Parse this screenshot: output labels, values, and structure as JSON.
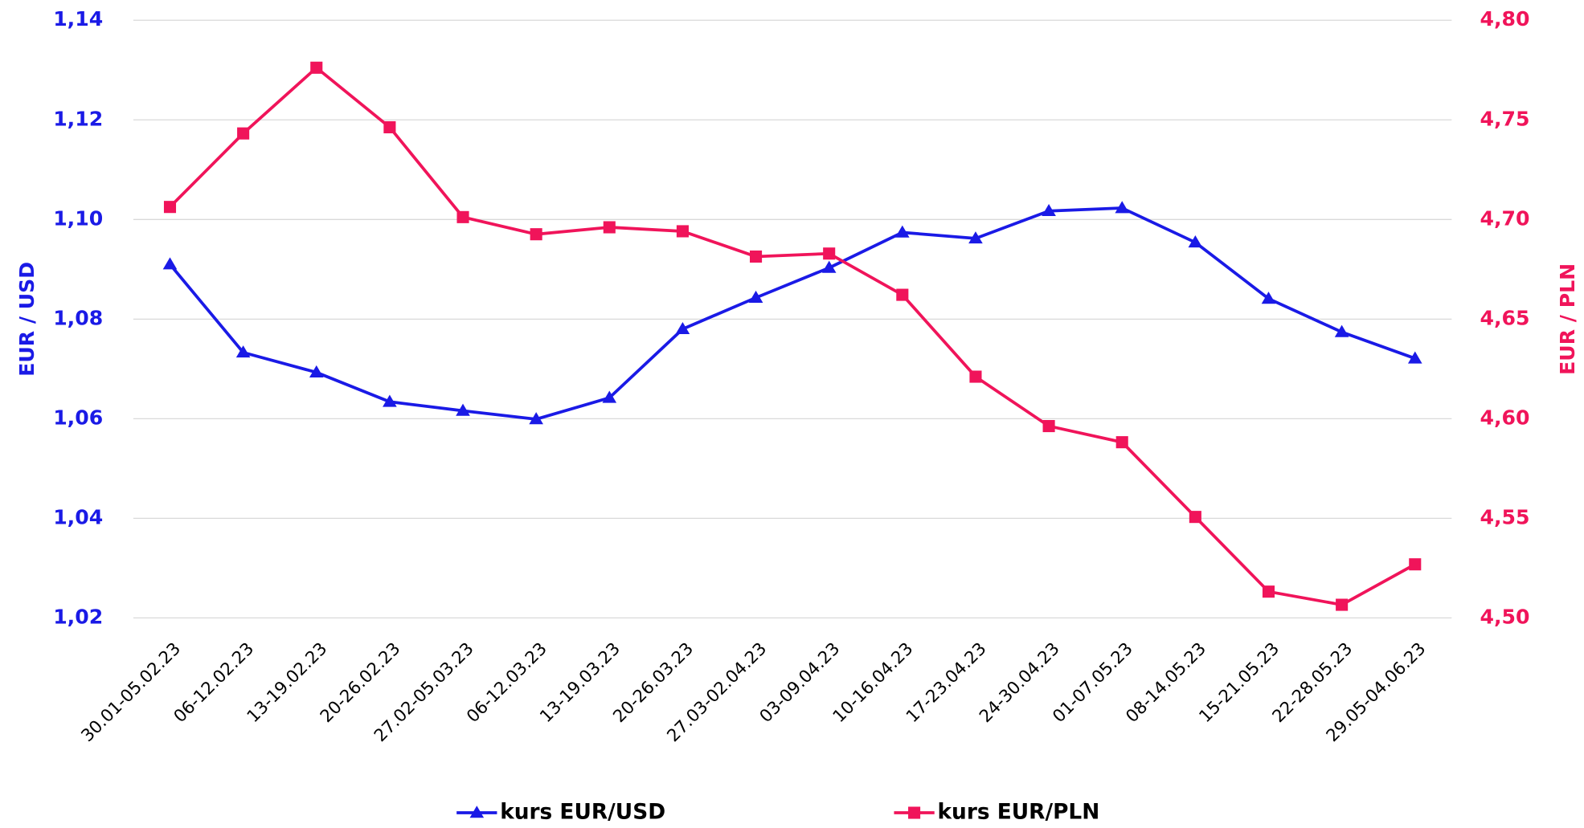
{
  "chart_data": {
    "type": "line",
    "categories": [
      "30.01-05.02.23",
      "06-12.02.23",
      "13-19.02.23",
      "20-26.02.23",
      "27.02-05.03.23",
      "06-12.03.23",
      "13-19.03.23",
      "20-26.03.23",
      "27.03-02.04.23",
      "03-09.04.23",
      "10-16.04.23",
      "17-23.04.23",
      "24-30.04.23",
      "01-07.05.23",
      "08-14.05.23",
      "15-21.05.23",
      "22-28.05.23",
      "29.05-04.06.23"
    ],
    "series": [
      {
        "name": "kurs EUR/USD",
        "color": "#1a1ae6",
        "marker": "triangle",
        "values": [
          1.091,
          1.0733,
          1.0693,
          1.0634,
          1.0616,
          1.0599,
          1.0642,
          1.078,
          1.0843,
          1.0903,
          1.0974,
          1.0962,
          1.1017,
          1.1023,
          1.0954,
          1.0841,
          1.0774,
          1.0721
        ]
      },
      {
        "name": "kurs EUR/PLN",
        "color": "#f0145a",
        "marker": "square",
        "axis": "y2",
        "values": [
          4.7063,
          4.7432,
          4.7762,
          4.7463,
          4.7012,
          4.6926,
          4.6961,
          4.6941,
          4.6814,
          4.6829,
          4.6622,
          4.6211,
          4.5963,
          4.5882,
          4.5507,
          4.5132,
          4.5066,
          4.5269
        ]
      }
    ],
    "ylabel": "EUR / USD",
    "y2label": "EUR / PLN",
    "ylim": [
      1.02,
      1.14
    ],
    "yticks": [
      {
        "value": 1.02,
        "label": "1,02"
      },
      {
        "value": 1.04,
        "label": "1,04"
      },
      {
        "value": 1.06,
        "label": "1,06"
      },
      {
        "value": 1.08,
        "label": "1,08"
      },
      {
        "value": 1.1,
        "label": "1,10"
      },
      {
        "value": 1.12,
        "label": "1,12"
      },
      {
        "value": 1.14,
        "label": "1,14"
      }
    ],
    "y2lim": [
      4.5,
      4.8
    ],
    "y2ticks": [
      {
        "value": 4.5,
        "label": "4,50"
      },
      {
        "value": 4.55,
        "label": "4,55"
      },
      {
        "value": 4.6,
        "label": "4,60"
      },
      {
        "value": 4.65,
        "label": "4,65"
      },
      {
        "value": 4.7,
        "label": "4,70"
      },
      {
        "value": 4.75,
        "label": "4,75"
      },
      {
        "value": 4.8,
        "label": "4,80"
      }
    ],
    "grid": true,
    "legend": "bottom"
  }
}
